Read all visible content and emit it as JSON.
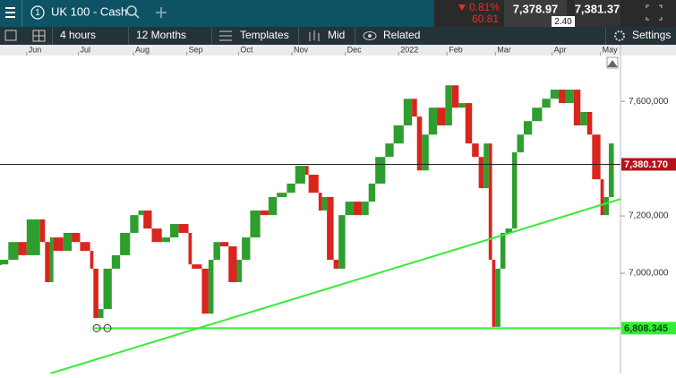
{
  "toolbar": {
    "instrument": "UK 100 - Cash",
    "change_pct": "0.81%",
    "change": "60.81",
    "sell": "7,378.97",
    "spread": "2.40",
    "buy": "7,381.37",
    "interval": "4 hours",
    "range": "12 Months",
    "templates": "Templates",
    "price_mode": "Mid",
    "related": "Related",
    "settings": "Settings"
  },
  "chart_data": {
    "type": "candle",
    "x": [
      0,
      5,
      11,
      16,
      24,
      27,
      30,
      32,
      38,
      43,
      48,
      54,
      56,
      59,
      62,
      67,
      72,
      78,
      83,
      86,
      91,
      97,
      102,
      107,
      113,
      115,
      121,
      125,
      128,
      132,
      137,
      142,
      145,
      150,
      156,
      161,
      166,
      172,
      177,
      183,
      185,
      191,
      193,
      196,
      200,
      203,
      207,
      212,
      217,
      221,
      225,
      231,
      236,
      242,
      247,
      250,
      253,
      257,
      262,
      267,
      271,
      275,
      279,
      283,
      287,
      290,
      293,
      295,
      297,
      300,
      303,
      307,
      310,
      314,
      319,
      325,
      330,
      335,
      339,
      344,
      348,
      352,
      355,
      360,
      362,
      365,
      368
    ],
    "values": [
      7031000,
      7047000,
      7109000,
      7063000,
      7188000,
      7109000,
      6969000,
      7125000,
      7078000,
      7141000,
      7109000,
      7078000,
      7016000,
      6844000,
      6875000,
      7016000,
      7063000,
      7141000,
      7203000,
      7219000,
      7156000,
      7109000,
      7125000,
      7172000,
      7141000,
      7031000,
      7016000,
      6859000,
      7047000,
      7109000,
      7094000,
      6969000,
      7047000,
      7125000,
      7219000,
      7203000,
      7266000,
      7281000,
      7313000,
      7375000,
      7344000,
      7281000,
      7219000,
      7266000,
      7047000,
      7016000,
      7203000,
      7250000,
      7203000,
      7250000,
      7313000,
      7406000,
      7453000,
      7516000,
      7609000,
      7547000,
      7359000,
      7484000,
      7578000,
      7516000,
      7656000,
      7578000,
      7594000,
      7453000,
      7406000,
      7297000,
      7453000,
      7047000,
      6813000,
      7016000,
      7141000,
      7156000,
      7422000,
      7484000,
      7531000,
      7578000,
      7609000,
      7641000,
      7594000,
      7641000,
      7516000,
      7563000,
      7484000,
      7328000,
      7203000,
      7266000,
      7453000
    ],
    "up_color": "#2e9e2e",
    "down_color": "#d9251d",
    "xlim": [
      0,
      372
    ],
    "ylim": [
      6650000,
      7760000
    ],
    "xticks": [
      {
        "value": 16,
        "label": "Jun"
      },
      {
        "value": 47,
        "label": "Jul"
      },
      {
        "value": 80,
        "label": "Aug"
      },
      {
        "value": 112,
        "label": "Sep"
      },
      {
        "value": 143,
        "label": "Oct"
      },
      {
        "value": 175,
        "label": "Nov"
      },
      {
        "value": 207,
        "label": "Dec"
      },
      {
        "value": 239,
        "label": "2022"
      },
      {
        "value": 268,
        "label": "Feb"
      },
      {
        "value": 297,
        "label": "Mar"
      },
      {
        "value": 331,
        "label": "Apr"
      },
      {
        "value": 360,
        "label": "May"
      }
    ],
    "yticks": [
      {
        "value": 7600000,
        "label": "7,600,000"
      },
      {
        "value": 7200000,
        "label": "7,200,000"
      },
      {
        "value": 7000000,
        "label": "7,000,000"
      }
    ],
    "price_lines": [
      {
        "value": 7380170,
        "label": "7,380.170",
        "color": "#222222",
        "tag_color": "#b5121b"
      },
      {
        "value": 6808345,
        "label": "6,808.345",
        "color": "#33ee33",
        "tag_color": "#33ee33"
      }
    ],
    "trendline": {
      "x": [
        30,
        372
      ],
      "y": [
        6650000,
        7259000
      ],
      "color": "#33ee33"
    }
  }
}
